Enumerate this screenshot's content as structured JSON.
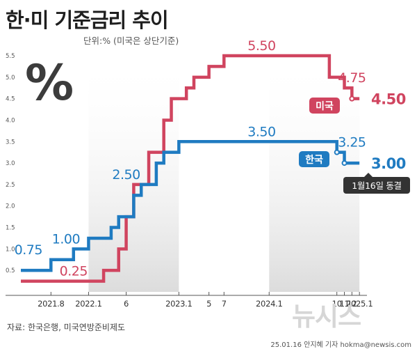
{
  "title": "한·미 기준금리 추이",
  "unit_note": "단위:% (미국은 상단기준)",
  "source": "자료: 한국은행, 미국연방준비제도",
  "credit": "25.01.16 안지혜 기자 hokma@newsis.com",
  "logo": "뉴시스",
  "percent_symbol": "%",
  "colors": {
    "us": "#d0445f",
    "korea": "#1f7bc1",
    "band": "#dcdcdc",
    "callout": "#333333"
  },
  "chart_data": {
    "type": "line",
    "step": true,
    "title": "한·미 기준금리 추이",
    "ylim": [
      0,
      5.5
    ],
    "yticks": [
      {
        "value": 0.5,
        "label": "0.5"
      },
      {
        "value": 1.0,
        "label": "1.0"
      },
      {
        "value": 1.5,
        "label": "1.5"
      },
      {
        "value": 2.0,
        "label": "2.0"
      },
      {
        "value": 2.5,
        "label": "2.5"
      },
      {
        "value": 3.0,
        "label": "3.0"
      },
      {
        "value": 3.5,
        "label": "3.5"
      },
      {
        "value": 4.0,
        "label": "4.0"
      },
      {
        "value": 4.5,
        "label": "4.5"
      },
      {
        "value": 5.0,
        "label": "5.0"
      },
      {
        "value": 5.5,
        "label": "5.5"
      }
    ],
    "xlim": [
      "2021-04",
      "2025-02"
    ],
    "xticks": [
      {
        "date": "2021-08",
        "label": "2021.8"
      },
      {
        "date": "2022-01",
        "label": "2022.1"
      },
      {
        "date": "2022-06",
        "label": "6"
      },
      {
        "date": "2023-01",
        "label": "2023.1"
      },
      {
        "date": "2023-05",
        "label": "5"
      },
      {
        "date": "2023-07",
        "label": "7"
      },
      {
        "date": "2024-01",
        "label": "2024.1"
      },
      {
        "date": "2024-10",
        "label": "10"
      },
      {
        "date": "2024-11",
        "label": "11"
      },
      {
        "date": "2024-12",
        "label": "12"
      },
      {
        "date": "2025-01",
        "label": "2025.1"
      }
    ],
    "shaded_periods": [
      [
        "2022-01",
        "2023-01"
      ],
      [
        "2024-01",
        "2025-01"
      ]
    ],
    "grid": false,
    "series": [
      {
        "name": "미국",
        "points": [
          {
            "date": "2021-04",
            "value": 0.25
          },
          {
            "date": "2022-03",
            "value": 0.5
          },
          {
            "date": "2022-05",
            "value": 1.0
          },
          {
            "date": "2022-06",
            "value": 1.75
          },
          {
            "date": "2022-07",
            "value": 2.5
          },
          {
            "date": "2022-09",
            "value": 3.25
          },
          {
            "date": "2022-11",
            "value": 4.0
          },
          {
            "date": "2022-12",
            "value": 4.5
          },
          {
            "date": "2023-02",
            "value": 4.75
          },
          {
            "date": "2023-03",
            "value": 5.0
          },
          {
            "date": "2023-05",
            "value": 5.25
          },
          {
            "date": "2023-07",
            "value": 5.5
          },
          {
            "date": "2024-09",
            "value": 5.0
          },
          {
            "date": "2024-11",
            "value": 4.75
          },
          {
            "date": "2024-12",
            "value": 4.5
          },
          {
            "date": "2025-01",
            "value": 4.5
          }
        ]
      },
      {
        "name": "한국",
        "points": [
          {
            "date": "2021-04",
            "value": 0.5
          },
          {
            "date": "2021-08",
            "value": 0.75
          },
          {
            "date": "2021-11",
            "value": 1.0
          },
          {
            "date": "2022-01",
            "value": 1.25
          },
          {
            "date": "2022-04",
            "value": 1.5
          },
          {
            "date": "2022-05",
            "value": 1.75
          },
          {
            "date": "2022-07",
            "value": 2.25
          },
          {
            "date": "2022-08",
            "value": 2.5
          },
          {
            "date": "2022-10",
            "value": 3.0
          },
          {
            "date": "2022-11",
            "value": 3.25
          },
          {
            "date": "2023-01",
            "value": 3.5
          },
          {
            "date": "2024-10",
            "value": 3.25
          },
          {
            "date": "2024-11",
            "value": 3.0
          },
          {
            "date": "2025-01",
            "value": 3.0
          }
        ]
      }
    ],
    "annotations": [
      {
        "series": "미국",
        "date": "2021-11",
        "value": 0.25,
        "label": "0.25"
      },
      {
        "series": "한국",
        "date": "2021-05",
        "value": 0.75,
        "label": "0.75"
      },
      {
        "series": "한국",
        "date": "2021-10",
        "value": 1.0,
        "label": "1.00"
      },
      {
        "series": "한국",
        "date": "2022-06",
        "value": 2.5,
        "label": "2.50"
      },
      {
        "series": "한국",
        "date": "2023-12",
        "value": 3.5,
        "label": "3.50"
      },
      {
        "series": "미국",
        "date": "2023-12",
        "value": 5.5,
        "label": "5.50"
      },
      {
        "series": "미국",
        "date": "2024-12",
        "value": 4.75,
        "label": "4.75"
      },
      {
        "series": "한국",
        "date": "2024-12",
        "value": 3.25,
        "label": "3.25"
      },
      {
        "series": "미국",
        "date": "2025-02",
        "value": 4.5,
        "label": "4.50",
        "emphasis": true
      },
      {
        "series": "한국",
        "date": "2025-02",
        "value": 3.0,
        "label": "3.00",
        "emphasis": true
      }
    ],
    "legend": [
      {
        "series": "미국",
        "label": "미국"
      },
      {
        "series": "한국",
        "label": "한국"
      }
    ],
    "callout": "1월16일 동결"
  }
}
